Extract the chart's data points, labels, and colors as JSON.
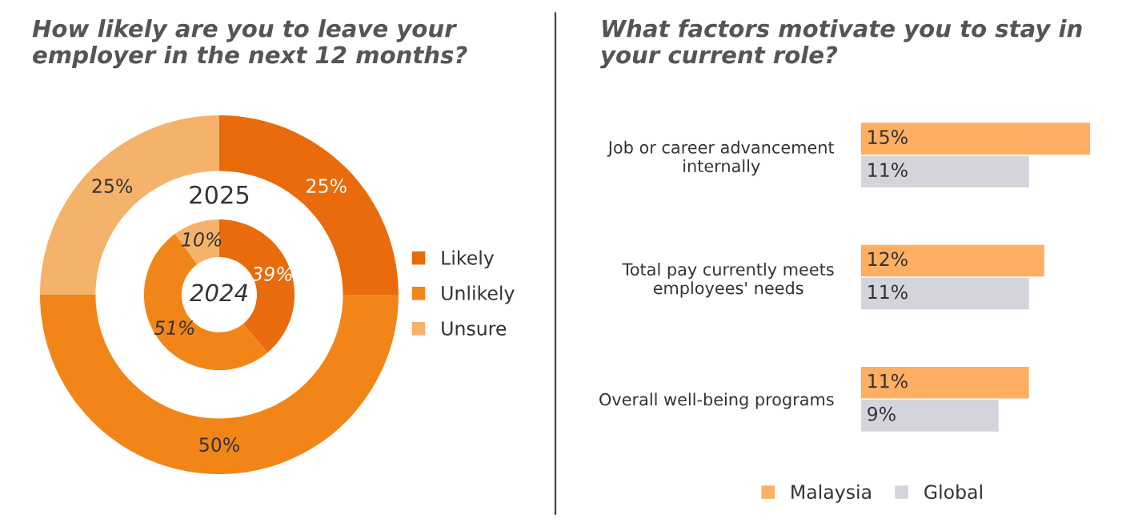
{
  "chart_data": [
    {
      "type": "donut",
      "title": "How likely are you to leave your\nemployer in the next 12 months?",
      "categories": [
        "Likely",
        "Unlikely",
        "Unsure"
      ],
      "colors": [
        "#e96b0c",
        "#f28518",
        "#f5b26b"
      ],
      "legend": "right",
      "series": [
        {
          "name": "2025",
          "values": [
            25,
            50,
            25
          ],
          "value_labels": [
            "25%",
            "50%",
            "25%"
          ]
        },
        {
          "name": "2024",
          "values": [
            39,
            51,
            10
          ],
          "value_labels": [
            "39%",
            "51%",
            "10%"
          ]
        }
      ]
    },
    {
      "type": "bar",
      "orientation": "horizontal",
      "title": "What factors motivate you to stay in\nyour current role?",
      "categories": [
        "Job or career advancement\ninternally",
        "Total pay currently meets\nemployees' needs",
        "Overall well-being programs"
      ],
      "legend": "bottom",
      "xlim": [
        0,
        15
      ],
      "tick_labels": "y",
      "series": [
        {
          "name": "Malaysia",
          "color": "#ffae62",
          "values": [
            15,
            12,
            11
          ],
          "value_labels": [
            "15%",
            "12%",
            "11%"
          ]
        },
        {
          "name": "Global",
          "color": "#d4d4dc",
          "values": [
            11,
            11,
            9
          ],
          "value_labels": [
            "11%",
            "11%",
            "9%"
          ]
        }
      ]
    }
  ]
}
